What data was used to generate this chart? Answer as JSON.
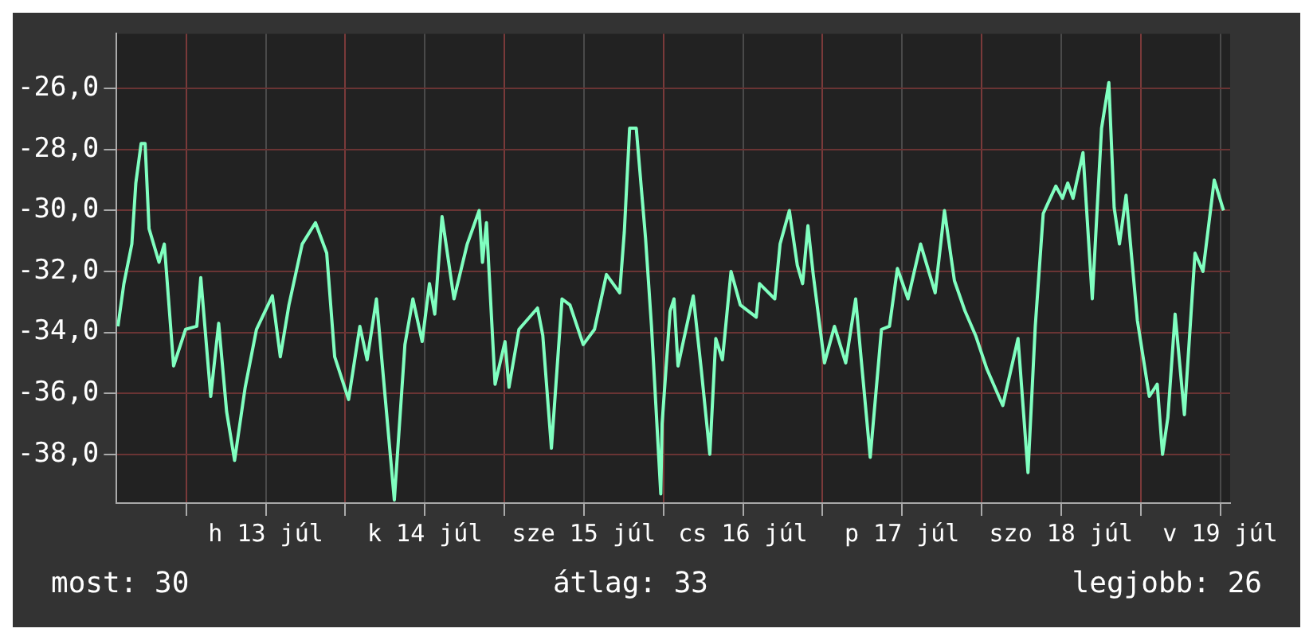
{
  "chart_data": {
    "type": "line",
    "x": [
      "--07-12T13:42",
      "--07-12T14:36",
      "--07-12T15:48",
      "--07-12T16:24",
      "--07-12T17:12",
      "--07-12T17:48",
      "--07-12T18:24",
      "--07-12T19:54",
      "--07-12T20:42",
      "--07-12T22:06",
      "--07-12T23:54",
      "--07-13T01:36",
      "--07-13T02:12",
      "--07-13T03:42",
      "--07-13T04:54",
      "--07-13T06:06",
      "--07-13T07:18",
      "--07-13T08:54",
      "--07-13T10:36",
      "--07-13T13:00",
      "--07-13T14:12",
      "--07-13T15:30",
      "--07-13T17:30",
      "--07-13T19:30",
      "--07-13T21:12",
      "--07-13T22:24",
      "--07-14T00:30",
      "--07-14T02:12",
      "--07-14T03:18",
      "--07-14T04:42",
      "--07-14T07:24",
      "--07-14T09:00",
      "--07-14T10:12",
      "--07-14T11:36",
      "--07-14T12:42",
      "--07-14T13:30",
      "--07-14T14:36",
      "--07-14T16:24",
      "--07-14T18:24",
      "--07-14T20:12",
      "--07-14T20:42",
      "--07-14T21:18",
      "--07-14T22:36",
      "--07-15T00:06",
      "--07-15T00:42",
      "--07-15T02:12",
      "--07-15T05:00",
      "--07-15T05:48",
      "--07-15T07:06",
      "--07-15T08:42",
      "--07-15T09:54",
      "--07-15T11:54",
      "--07-15T13:36",
      "--07-15T15:24",
      "--07-15T17:24",
      "--07-15T18:06",
      "--07-15T18:54",
      "--07-15T19:54",
      "--07-15T21:18",
      "--07-15T22:12",
      "--07-15T23:36",
      "--07-15T23:48",
      "--07-16T01:00",
      "--07-16T01:36",
      "--07-16T02:12",
      "--07-16T03:30",
      "--07-16T04:30",
      "--07-16T05:42",
      "--07-16T07:00",
      "--07-16T07:54",
      "--07-16T08:54",
      "--07-16T10:12",
      "--07-16T11:36",
      "--07-16T14:00",
      "--07-16T14:30",
      "--07-16T16:48",
      "--07-16T17:36",
      "--07-16T19:00",
      "--07-16T20:12",
      "--07-16T21:00",
      "--07-16T21:48",
      "--07-16T22:36",
      "--07-17T00:18",
      "--07-17T01:48",
      "--07-17T03:30",
      "--07-17T05:00",
      "--07-17T07:12",
      "--07-17T08:54",
      "--07-17T10:06",
      "--07-17T11:18",
      "--07-17T12:54",
      "--07-17T14:48",
      "--07-17T17:00",
      "--07-17T18:24",
      "--07-17T19:54",
      "--07-17T21:30",
      "--07-17T23:06",
      "--07-18T00:48",
      "--07-18T03:12",
      "--07-18T05:30",
      "--07-18T07:00",
      "--07-18T08:06",
      "--07-18T09:18",
      "--07-18T11:12",
      "--07-18T12:12",
      "--07-18T13:00",
      "--07-18T13:48",
      "--07-18T15:18",
      "--07-18T16:42",
      "--07-18T18:06",
      "--07-18T19:12",
      "--07-18T20:00",
      "--07-18T20:48",
      "--07-18T21:48",
      "--07-18T23:30",
      "--07-19T01:18",
      "--07-19T02:30",
      "--07-19T03:18",
      "--07-19T04:06",
      "--07-19T05:12",
      "--07-19T06:36",
      "--07-19T08:12",
      "--07-19T09:24",
      "--07-19T11:06",
      "--07-19T12:30"
    ],
    "series": [
      {
        "color": "#80ffc0",
        "values": [
          -33.8,
          -32.4,
          -31.1,
          -29.1,
          -27.8,
          -27.8,
          -30.6,
          -31.7,
          -31.1,
          -35.1,
          -33.9,
          -33.8,
          -32.2,
          -36.1,
          -33.7,
          -36.6,
          -38.2,
          -35.8,
          -33.9,
          -32.8,
          -34.8,
          -33.1,
          -31.1,
          -30.4,
          -31.4,
          -34.8,
          -36.2,
          -33.8,
          -34.9,
          -32.9,
          -39.5,
          -34.4,
          -32.9,
          -34.3,
          -32.4,
          -33.4,
          -30.2,
          -32.9,
          -31.1,
          -30,
          -31.7,
          -30.4,
          -35.7,
          -34.3,
          -35.8,
          -33.9,
          -33.2,
          -34.1,
          -37.8,
          -32.9,
          -33.1,
          -34.4,
          -33.9,
          -32.1,
          -32.7,
          -30.7,
          -27.3,
          -27.3,
          -30.9,
          -33.8,
          -39.3,
          -37,
          -33.3,
          -32.9,
          -35.1,
          -33.8,
          -32.8,
          -35.2,
          -38,
          -34.2,
          -34.9,
          -32,
          -33.1,
          -33.5,
          -32.4,
          -32.9,
          -31.1,
          -30,
          -31.8,
          -32.4,
          -30.5,
          -32.1,
          -35,
          -33.8,
          -35,
          -32.9,
          -38.1,
          -33.9,
          -33.8,
          -31.9,
          -32.9,
          -31.1,
          -32.7,
          -30,
          -32.3,
          -33.3,
          -34.1,
          -35.2,
          -36.4,
          -34.2,
          -38.6,
          -33.8,
          -30.1,
          -29.2,
          -29.6,
          -29.1,
          -29.6,
          -28.1,
          -32.9,
          -27.3,
          -25.8,
          -29.9,
          -31.1,
          -29.5,
          -33.6,
          -36.1,
          -35.7,
          -38,
          -36.8,
          -33.4,
          -36.7,
          -31.4,
          -32,
          -29,
          -30
        ]
      }
    ],
    "xlim": [
      "--07-12T13:30",
      "--07-19T13:30"
    ],
    "xticks": [
      {
        "value": "--07-13",
        "label": null
      },
      {
        "value": "--07-13T12:00",
        "label": "h 13 júl"
      },
      {
        "value": "--07-14",
        "label": null
      },
      {
        "value": "--07-14T12:00",
        "label": "k 14 júl"
      },
      {
        "value": "--07-15",
        "label": null
      },
      {
        "value": "--07-15T12:00",
        "label": "sze 15 júl"
      },
      {
        "value": "--07-16",
        "label": null
      },
      {
        "value": "--07-16T12:00",
        "label": "cs 16 júl"
      },
      {
        "value": "--07-17",
        "label": null
      },
      {
        "value": "--07-17T12:00",
        "label": "p 17 júl"
      },
      {
        "value": "--07-18",
        "label": null
      },
      {
        "value": "--07-18T12:00",
        "label": "szo 18 júl"
      },
      {
        "value": "--07-19",
        "label": null
      },
      {
        "value": "--07-19T12:00",
        "label": "v 19 júl"
      }
    ],
    "ylim": [
      -39.6,
      -24.2
    ],
    "yticks": [
      {
        "value": -38,
        "label": "-38,0"
      },
      {
        "value": -36,
        "label": "-36,0"
      },
      {
        "value": -34,
        "label": "-34,0"
      },
      {
        "value": -32,
        "label": "-32,0"
      },
      {
        "value": -30,
        "label": "-30,0"
      },
      {
        "value": -28,
        "label": "-28,0"
      },
      {
        "value": -26,
        "label": "-26,0"
      }
    ],
    "grid": true,
    "marker": "none",
    "line_style": "solid",
    "annotations": [
      "most: 30",
      "átlag: 33",
      "legjobb: 26"
    ]
  }
}
